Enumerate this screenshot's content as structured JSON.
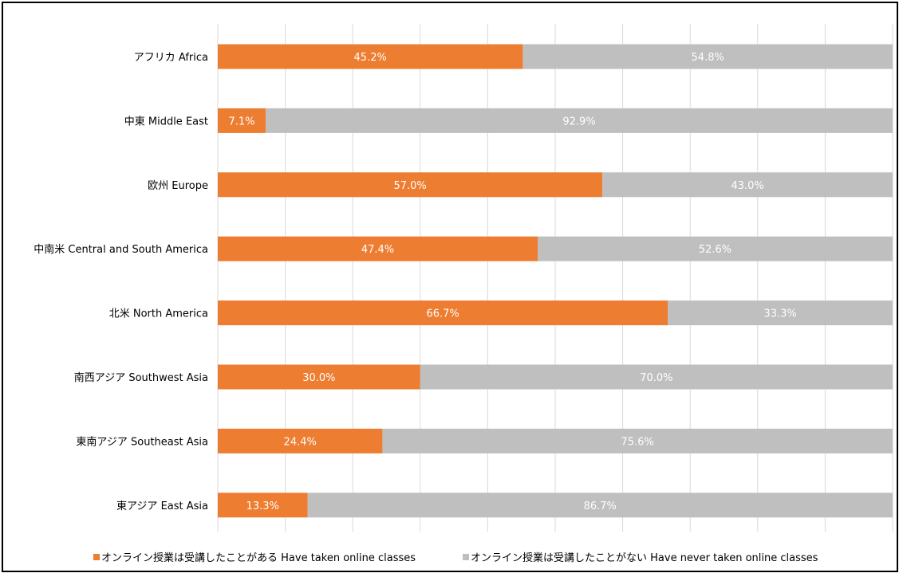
{
  "chart_data": {
    "type": "bar",
    "orientation": "horizontal",
    "stacked": "100%",
    "categories": [
      "アフリカ Africa",
      "中東 Middle East",
      "欧州 Europe",
      "中南米 Central and South America",
      "北米 North America",
      "南西アジア Southwest Asia",
      "東南アジア Southeast Asia",
      "東アジア East Asia"
    ],
    "series": [
      {
        "name": "オンライン授業は受講したことがある Have taken online classes",
        "color": "#ED7D31",
        "values": [
          45.2,
          7.1,
          57.0,
          47.4,
          66.7,
          30.0,
          24.4,
          13.3
        ],
        "labels": [
          "45.2%",
          "7.1%",
          "57.0%",
          "47.4%",
          "66.7%",
          "30.0%",
          "24.4%",
          "13.3%"
        ]
      },
      {
        "name": "オンライン授業は受講したことがない Have never taken online classes",
        "color": "#BFBFBF",
        "values": [
          54.8,
          92.9,
          43.0,
          52.6,
          33.3,
          70.0,
          75.6,
          86.7
        ],
        "labels": [
          "54.8%",
          "92.9%",
          "43.0%",
          "52.6%",
          "33.3%",
          "70.0%",
          "75.6%",
          "86.7%"
        ]
      }
    ],
    "xlim": [
      0,
      100
    ],
    "grid": true,
    "legend_position": "bottom"
  }
}
